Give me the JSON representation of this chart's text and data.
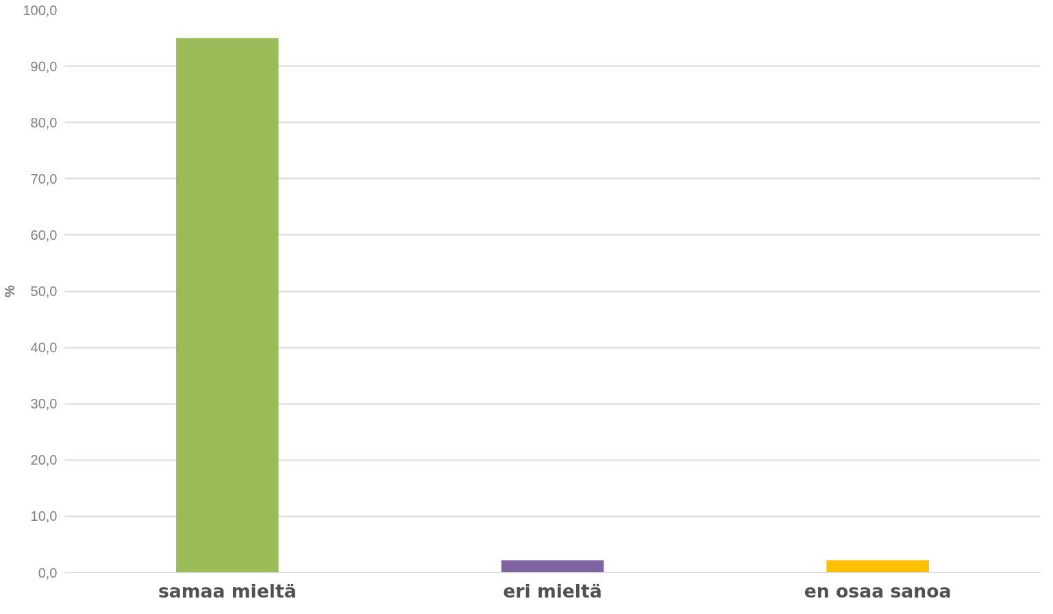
{
  "chart_data": {
    "type": "bar",
    "ylabel": "%",
    "categories": [
      "samaa mieltä",
      "eri mieltä",
      "en osaa sanoa"
    ],
    "values": [
      95.0,
      2.2,
      2.2
    ],
    "colors": [
      "#9bbb59",
      "#8064a2",
      "#ffc000"
    ],
    "ylim": [
      0,
      100
    ],
    "yticks": [
      {
        "value": 0,
        "label": "0,0"
      },
      {
        "value": 10,
        "label": "10,0"
      },
      {
        "value": 20,
        "label": "20,0"
      },
      {
        "value": 30,
        "label": "30,0"
      },
      {
        "value": 40,
        "label": "40,0"
      },
      {
        "value": 50,
        "label": "50,0"
      },
      {
        "value": 60,
        "label": "60,0"
      },
      {
        "value": 70,
        "label": "70,0"
      },
      {
        "value": 80,
        "label": "80,0"
      },
      {
        "value": 90,
        "label": "90,0"
      },
      {
        "value": 100,
        "label": "100,0"
      }
    ],
    "grid": "y"
  }
}
